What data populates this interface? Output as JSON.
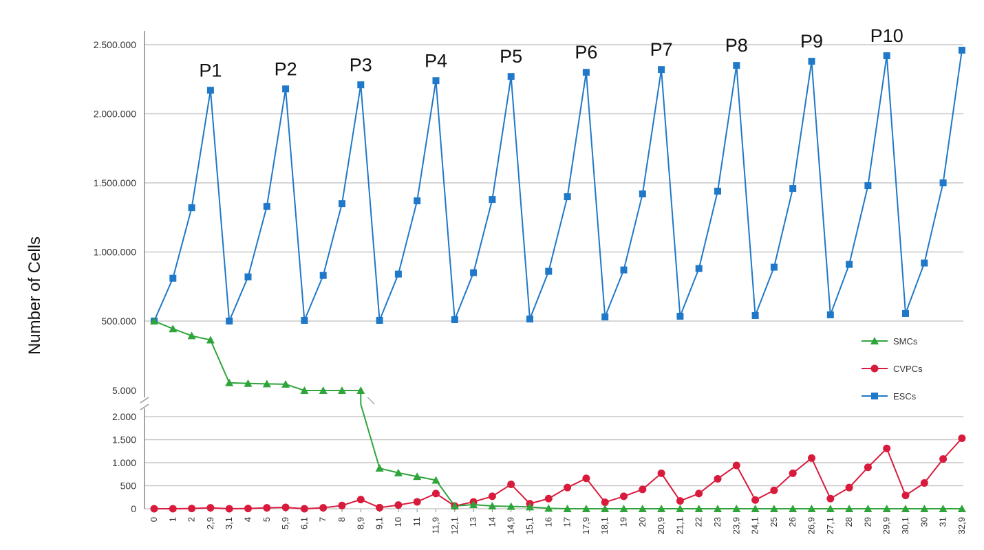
{
  "chart_data": {
    "type": "line",
    "title": "",
    "xlabel": "",
    "ylabel": "Number of Cells",
    "x": [
      "0",
      "1",
      "2",
      "2,9",
      "3,1",
      "4",
      "5",
      "5,9",
      "6,1",
      "7",
      "8",
      "8,9",
      "9,1",
      "10",
      "11",
      "11,9",
      "12,1",
      "13",
      "14",
      "14,9",
      "15,1",
      "16",
      "17",
      "17,9",
      "18,1",
      "19",
      "20",
      "20,9",
      "21,1",
      "22",
      "23",
      "23,9",
      "24,1",
      "25",
      "26",
      "26,9",
      "27,1",
      "28",
      "29",
      "29,9",
      "30,1",
      "30",
      "31",
      "32,9"
    ],
    "y_upper": {
      "ylim": [
        5000,
        2500000
      ],
      "ticks": [
        5000,
        500000,
        1000000,
        1500000,
        2000000,
        2500000
      ],
      "tick_labels": [
        "5.000",
        "500.000",
        "1.000.000",
        "1.500.000",
        "2.000.000",
        "2.500.000"
      ]
    },
    "y_lower": {
      "ylim": [
        0,
        2000
      ],
      "ticks": [
        0,
        500,
        1000,
        1500,
        2000
      ],
      "tick_labels": [
        "0",
        "500",
        "1.000",
        "1.500",
        "2.000"
      ]
    },
    "axis_break": true,
    "grid": true,
    "legend": "right",
    "passage_labels": [
      {
        "text": "P1",
        "x_index": 3
      },
      {
        "text": "P2",
        "x_index": 7
      },
      {
        "text": "P3",
        "x_index": 11
      },
      {
        "text": "P4",
        "x_index": 15
      },
      {
        "text": "P5",
        "x_index": 19
      },
      {
        "text": "P6",
        "x_index": 23
      },
      {
        "text": "P7",
        "x_index": 27
      },
      {
        "text": "P8",
        "x_index": 31
      },
      {
        "text": "P9",
        "x_index": 35
      },
      {
        "text": "P10",
        "x_index": 39
      }
    ],
    "series": [
      {
        "name": "ESCs",
        "color": "#1f78c8",
        "marker": "square",
        "axis": "upper",
        "values": [
          500000,
          810000,
          1320000,
          2170000,
          500000,
          820000,
          1330000,
          2180000,
          505000,
          830000,
          1350000,
          2210000,
          505000,
          840000,
          1370000,
          2240000,
          510000,
          850000,
          1380000,
          2270000,
          515000,
          860000,
          1400000,
          2300000,
          530000,
          870000,
          1420000,
          2320000,
          535000,
          880000,
          1440000,
          2350000,
          540000,
          890000,
          1460000,
          2380000,
          545000,
          910000,
          1480000,
          2420000,
          555000,
          920000,
          1500000,
          2460000
        ]
      },
      {
        "name": "CVPCs",
        "color": "#d81b3c",
        "marker": "circle",
        "axis": "lower",
        "values": [
          0,
          0,
          5,
          20,
          0,
          5,
          20,
          30,
          0,
          20,
          70,
          200,
          25,
          80,
          150,
          330,
          60,
          150,
          270,
          530,
          110,
          220,
          460,
          660,
          140,
          270,
          420,
          770,
          170,
          330,
          650,
          940,
          190,
          400,
          770,
          1100,
          220,
          460,
          900,
          1310,
          290,
          560,
          1080,
          1530
        ]
      },
      {
        "name": "SMCs",
        "color": "#2ea43a",
        "marker": "triangle",
        "axis": "mixed",
        "note_values": "upper-axis values for indices 0-11, lower-axis values from index 12",
        "upper_values": [
          500000,
          445000,
          395000,
          365000,
          60000,
          55000,
          52000,
          50000,
          5000,
          5000,
          5000,
          5000
        ],
        "lower_values": [
          2300,
          880,
          780,
          700,
          620,
          60,
          90,
          60,
          50,
          40,
          10,
          0,
          0,
          0,
          0,
          0,
          0,
          0,
          0,
          0,
          0,
          0,
          0,
          0,
          0,
          0,
          0,
          0,
          0,
          0,
          0,
          0,
          0
        ]
      }
    ]
  }
}
